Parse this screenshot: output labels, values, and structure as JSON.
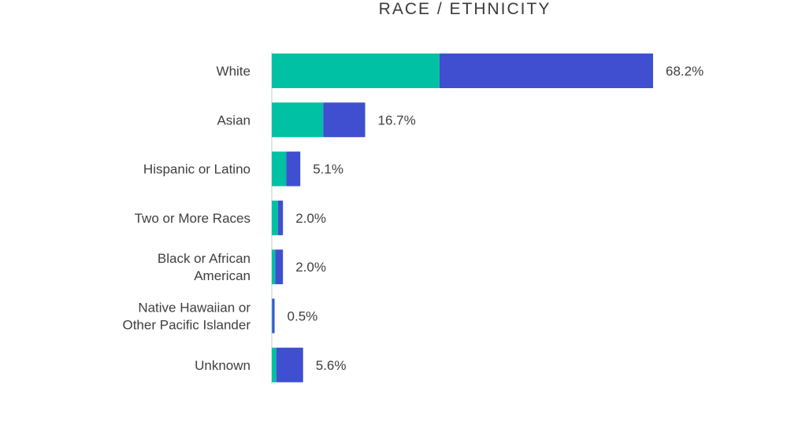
{
  "chart_data": {
    "type": "bar",
    "orientation": "horizontal",
    "stacked": true,
    "title": "RACE / ETHNICITY",
    "xlabel": "",
    "ylabel": "",
    "xlim": [
      0,
      68.2
    ],
    "categories": [
      "White",
      "Asian",
      "Hispanic or Latino",
      "Two or More Races",
      "Black or African American",
      "Native Hawaiian or Other Pacific Islander",
      "Unknown"
    ],
    "category_lines": [
      [
        "White"
      ],
      [
        "Asian"
      ],
      [
        "Hispanic or Latino"
      ],
      [
        "Two or More Races"
      ],
      [
        "Black or African",
        "American"
      ],
      [
        "Native Hawaiian or",
        "Other Pacific Islander"
      ],
      [
        "Unknown"
      ]
    ],
    "series": [
      {
        "color": "#00c1a3",
        "values": [
          30.0,
          9.2,
          2.6,
          1.1,
          0.6,
          0.1,
          0.8
        ]
      },
      {
        "color": "#3f4fcf",
        "values": [
          38.2,
          7.5,
          2.5,
          0.9,
          1.4,
          0.4,
          4.8
        ]
      }
    ],
    "totals": [
      68.2,
      16.7,
      5.1,
      2.0,
      2.0,
      0.5,
      5.6
    ],
    "value_labels": [
      "68.2%",
      "16.7%",
      "5.1%",
      "2.0%",
      "2.0%",
      "0.5%",
      "5.6%"
    ],
    "legend": "none",
    "grid": false
  }
}
